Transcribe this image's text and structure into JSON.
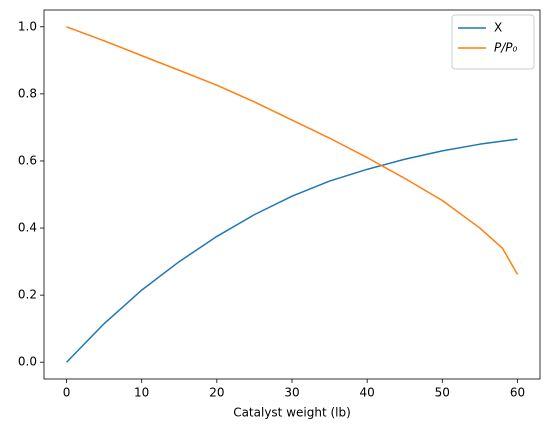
{
  "chart_data": {
    "type": "line",
    "xlabel": "Catalyst weight (lb)",
    "x": [
      0,
      5,
      10,
      15,
      20,
      25,
      30,
      35,
      40,
      45,
      50,
      55,
      58,
      60
    ],
    "series": [
      {
        "name": "X",
        "color": "#1f77b4",
        "values": [
          0,
          0.115,
          0.215,
          0.3,
          0.375,
          0.44,
          0.495,
          0.54,
          0.575,
          0.605,
          0.63,
          0.65,
          0.659,
          0.665
        ]
      },
      {
        "name": "P/P₀",
        "color": "#ff7f0e",
        "values": [
          1.0,
          0.958,
          0.914,
          0.87,
          0.826,
          0.776,
          0.722,
          0.668,
          0.61,
          0.548,
          0.482,
          0.4,
          0.34,
          0.262
        ]
      }
    ],
    "xlim": [
      -3,
      63
    ],
    "ylim": [
      -0.05,
      1.05
    ],
    "xticks": [
      0,
      10,
      20,
      30,
      40,
      50,
      60
    ],
    "yticks": [
      {
        "value": 0,
        "label": "0.0"
      },
      0.2,
      0.4,
      0.6,
      0.8,
      {
        "value": 1,
        "label": "1.0"
      }
    ],
    "legend": "upper right",
    "grid": false
  }
}
